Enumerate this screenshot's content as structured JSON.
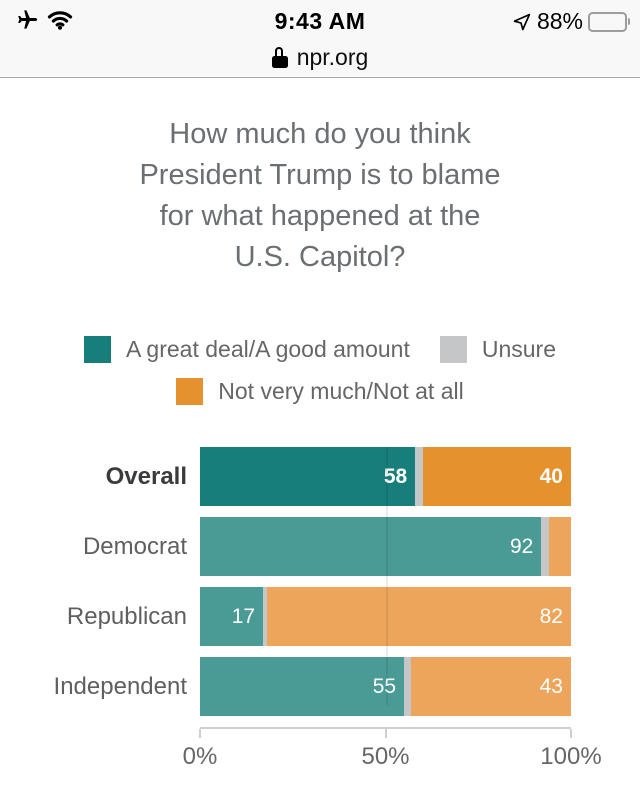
{
  "status_bar": {
    "time": "9:43 AM",
    "battery_percent": "88%",
    "url": "npr.org",
    "icons": [
      "airplane-mode",
      "wifi",
      "location-arrow",
      "battery",
      "lock"
    ]
  },
  "title": {
    "text": "How much do you think President Trump is to blame for what happened at the U.S. Capitol?",
    "lines": [
      "How much do you think",
      "President Trump is to blame",
      "for what happened at the",
      "U.S. Capitol?"
    ]
  },
  "legend": {
    "items": [
      {
        "label": "A great deal/A good amount",
        "color": "#177e7b"
      },
      {
        "label": "Unsure",
        "color": "#c5c6c7"
      },
      {
        "label": "Not very much/Not at all",
        "color": "#e5922e"
      }
    ]
  },
  "chart_data": {
    "type": "bar",
    "orientation": "horizontal",
    "stacked": true,
    "title": "How much do you think President Trump is to blame for what happened at the U.S. Capitol?",
    "categories": [
      "Overall",
      "Democrat",
      "Republican",
      "Independent"
    ],
    "series": [
      {
        "name": "A great deal/A good amount",
        "values": [
          58,
          92,
          17,
          55
        ]
      },
      {
        "name": "Unsure",
        "values": [
          2,
          2,
          1,
          2
        ]
      },
      {
        "name": "Not very much/Not at all",
        "values": [
          40,
          6,
          82,
          43
        ]
      }
    ],
    "series_colors": [
      {
        "emphasized": "#177e7b",
        "muted": "#4a9b96"
      },
      {
        "emphasized": "#c5c6c7",
        "muted": "#c5c6c7"
      },
      {
        "emphasized": "#e5922e",
        "muted": "#eda55c"
      }
    ],
    "emphasized_category": "Overall",
    "show_value_label_min": 10,
    "xlim": [
      0,
      100
    ],
    "x_ticks": [
      {
        "label": "0%",
        "value": 0
      },
      {
        "label": "50%",
        "value": 50
      },
      {
        "label": "100%",
        "value": 100
      }
    ],
    "gridlines": [
      50
    ],
    "legend_position": "top"
  }
}
